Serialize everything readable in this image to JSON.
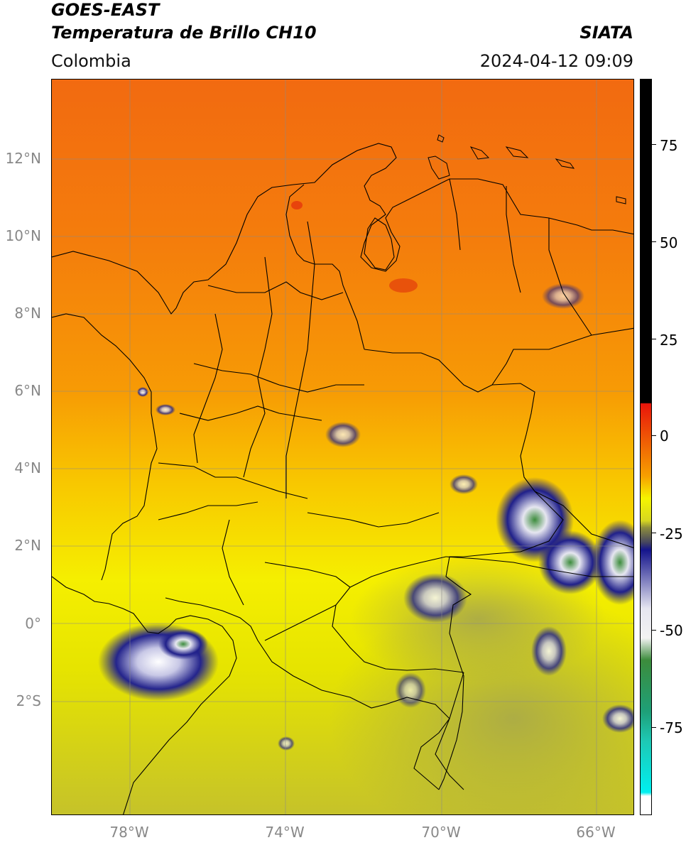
{
  "header": {
    "title_line1": "GOES-EAST",
    "title_line2": "Temperatura de Brillo CH10",
    "organization": "SIATA",
    "region": "Colombia",
    "datetime": "2024-04-12 09:09"
  },
  "map": {
    "lat_ticks": [
      "12°N",
      "10°N",
      "8°N",
      "6°N",
      "4°N",
      "2°N",
      "0°",
      "2°S"
    ],
    "lon_ticks": [
      "78°W",
      "74°W",
      "70°W",
      "66°W"
    ],
    "gridlines": true
  },
  "colorbar": {
    "ticks": [
      "75",
      "50",
      "25",
      "0",
      "-25",
      "-50",
      "-75"
    ],
    "colors": {
      "black": "#000000",
      "red": "#e8140a",
      "orange": "#f7a000",
      "yellow": "#f5f500",
      "olive": "#8c8c3c",
      "navy": "#14148c",
      "lightgray": "#e6e6f0",
      "green": "#3c8c3c",
      "teal": "#1ec8b4",
      "cyan": "#00f0f0",
      "white": "#ffffff"
    }
  }
}
